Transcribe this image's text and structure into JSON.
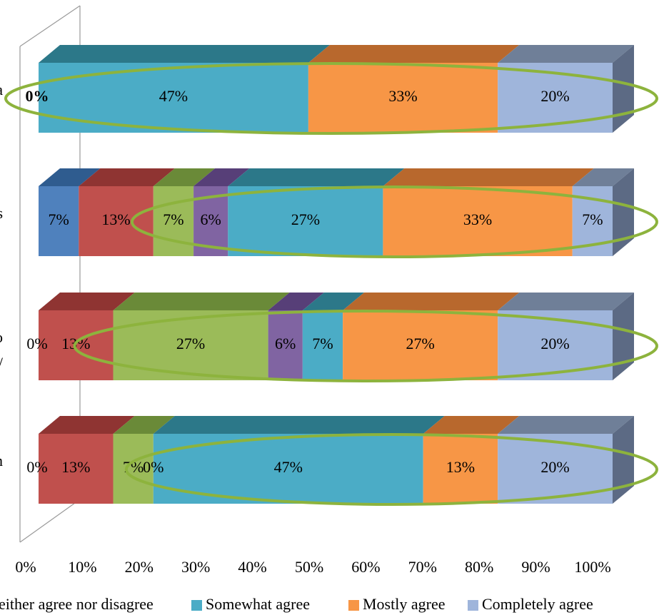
{
  "chart_data": {
    "type": "bar",
    "orientation": "horizontal",
    "stacked": "percent",
    "three_d": true,
    "rows": [
      {
        "label": "a",
        "values": [
          0,
          0,
          0,
          0,
          0.47,
          0.33,
          0.2
        ],
        "labels": [
          "",
          "",
          "",
          "",
          "47%",
          "33%",
          "20%"
        ],
        "zero_label": "0%",
        "zero_bold": true
      },
      {
        "label": "s",
        "values": [
          0.07,
          0.13,
          0.07,
          0.06,
          0.27,
          0.33,
          0.07
        ],
        "labels": [
          "7%",
          "13%",
          "7%",
          "6%",
          "27%",
          "33%",
          "7%"
        ]
      },
      {
        "label": "o",
        "label2": "/",
        "values": [
          0,
          0.13,
          0.27,
          0.06,
          0.07,
          0.27,
          0.2
        ],
        "labels": [
          "",
          "13%",
          "27%",
          "6%",
          "7%",
          "27%",
          "20%"
        ],
        "zero_label": "0%"
      },
      {
        "label": "n",
        "values": [
          0,
          0.13,
          0.07,
          0,
          0.47,
          0.13,
          0.2
        ],
        "labels": [
          "",
          "13%",
          "7%",
          "0%",
          "47%",
          "13%",
          "20%"
        ],
        "zero_label": "0%"
      }
    ],
    "series": [
      {
        "name": "",
        "color": "#4F81BD",
        "top": "#2F5C8F",
        "side": "#3A6494"
      },
      {
        "name": "",
        "color": "#C0504D",
        "top": "#8F3432",
        "side": "#963C3A"
      },
      {
        "name": "",
        "color": "#9BBB59",
        "top": "#6A8A38",
        "side": "#7A9742"
      },
      {
        "name": "either agree nor disagree",
        "color": "#8064A2",
        "top": "#573F78",
        "side": "#634B84"
      },
      {
        "name": "Somewhat agree",
        "color": "#4BACC6",
        "top": "#2C7889",
        "side": "#37869A"
      },
      {
        "name": "Mostly agree",
        "color": "#F79646",
        "top": "#B8682D",
        "side": "#CC7634"
      },
      {
        "name": "Completely agree",
        "color": "#9FB5DB",
        "top": "#6F7F98",
        "side": "#5C6A84"
      }
    ],
    "x_ticks": [
      "0%",
      "10%",
      "20%",
      "30%",
      "40%",
      "50%",
      "60%",
      "70%",
      "80%",
      "90%",
      "100%"
    ],
    "xlim": [
      0,
      1
    ],
    "grid": false,
    "legend_position": "bottom",
    "highlight_ellipses": [
      {
        "row": 0,
        "from": 0.0,
        "to": 1.0
      },
      {
        "row": 1,
        "from": 0.22,
        "to": 1.0
      },
      {
        "row": 2,
        "from": 0.12,
        "to": 1.0
      },
      {
        "row": 3,
        "from": 0.21,
        "to": 1.0
      }
    ],
    "highlight_color": "#8DB33D"
  }
}
